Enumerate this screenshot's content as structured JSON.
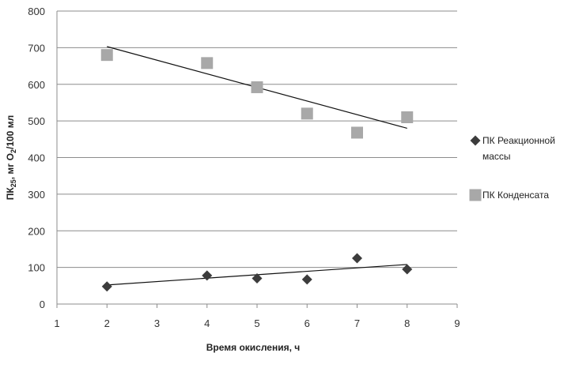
{
  "chart_data": {
    "type": "scatter",
    "title": "",
    "xlabel": "Время окисления, ч",
    "ylabel": {
      "prefix": "ПК",
      "prefix_sub": "25",
      "middle": ", мг О",
      "middle_sub": "2",
      "suffix": "/100 мл"
    },
    "xlim": [
      1,
      9
    ],
    "ylim": [
      0,
      800
    ],
    "x_ticks": [
      1,
      2,
      3,
      4,
      5,
      6,
      7,
      8,
      9
    ],
    "y_ticks": [
      0,
      100,
      200,
      300,
      400,
      500,
      600,
      700,
      800
    ],
    "grid": "horizontal",
    "legend_position": "right",
    "series": [
      {
        "name": "ПК Реакционной массы",
        "legend_lines": [
          "ПК Реакционной",
          "массы"
        ],
        "marker": "diamond",
        "color": "#3c3c3c",
        "x": [
          2,
          4,
          5,
          6,
          7,
          8
        ],
        "y": [
          48,
          78,
          70,
          67,
          125,
          95
        ],
        "trendline": {
          "x": [
            2,
            8
          ],
          "y": [
            52,
            108
          ]
        }
      },
      {
        "name": "ПК Конденсата",
        "legend_lines": [
          "ПК Конденсата"
        ],
        "marker": "square",
        "color": "#a8a8a8",
        "x": [
          2,
          4,
          5,
          6,
          7,
          8
        ],
        "y": [
          680,
          658,
          592,
          520,
          468,
          510
        ],
        "trendline": {
          "x": [
            2,
            8
          ],
          "y": [
            703,
            480
          ]
        }
      }
    ]
  }
}
